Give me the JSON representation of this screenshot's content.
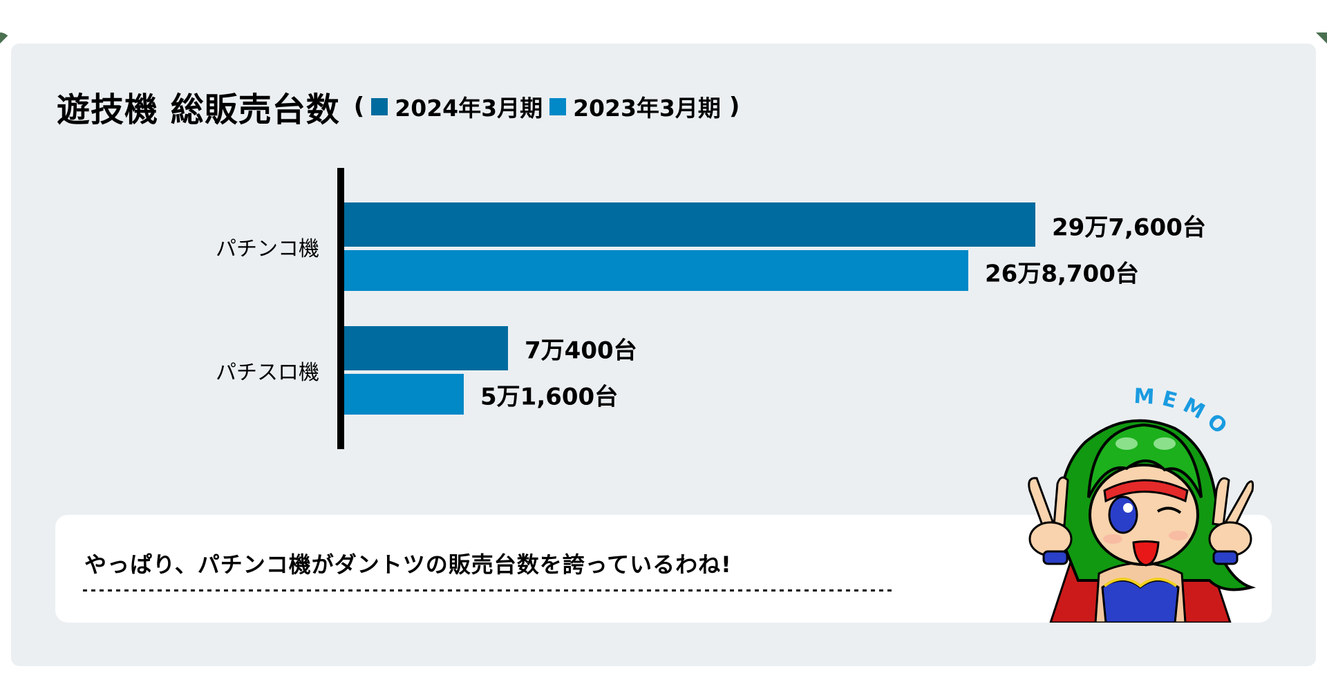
{
  "title": "遊技機 総販売台数",
  "legend": {
    "open_paren": "(",
    "close_paren": ")",
    "items": [
      {
        "label": "2024年3月期",
        "color": "#006b9e"
      },
      {
        "label": "2023年3月期",
        "color": "#0088c7"
      }
    ]
  },
  "chart_data": {
    "type": "bar",
    "orientation": "horizontal",
    "title": "遊技機 総販売台数",
    "categories": [
      "パチンコ機",
      "パチスロ機"
    ],
    "series": [
      {
        "name": "2024年3月期",
        "color": "#006b9e",
        "values": [
          297600,
          70400
        ],
        "labels": [
          "29万7,600台",
          "7万400台"
        ]
      },
      {
        "name": "2023年3月期",
        "color": "#0088c7",
        "values": [
          268700,
          51600
        ],
        "labels": [
          "26万8,700台",
          "5万1,600台"
        ]
      }
    ],
    "xlabel": "",
    "ylabel": "",
    "unit": "台",
    "grid": false,
    "legend_position": "title-inline"
  },
  "memo": {
    "badge": "MEMO",
    "text": "やっぱり、パチンコ機がダントツの販売台数を誇っているわね!",
    "badge_color": "#1a9be0"
  }
}
